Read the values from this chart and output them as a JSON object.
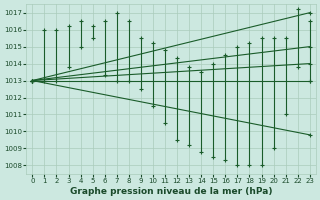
{
  "title": "Graphe pression niveau de la mer (hPa)",
  "bg_color": "#cce8e0",
  "grid_color": "#aaccbb",
  "line_color": "#1a5c2a",
  "xlim": [
    -0.5,
    23.5
  ],
  "ylim": [
    1007.5,
    1017.5
  ],
  "yticks": [
    1008,
    1009,
    1010,
    1011,
    1012,
    1013,
    1014,
    1015,
    1016,
    1017
  ],
  "xticks": [
    0,
    1,
    2,
    3,
    4,
    5,
    6,
    7,
    8,
    9,
    10,
    11,
    12,
    13,
    14,
    15,
    16,
    17,
    18,
    19,
    20,
    21,
    22,
    23
  ],
  "straight_lines": [
    {
      "x0": 0,
      "y0": 1013.0,
      "x1": 23,
      "y1": 1017.0
    },
    {
      "x0": 0,
      "y0": 1013.0,
      "x1": 23,
      "y1": 1015.0
    },
    {
      "x0": 0,
      "y0": 1013.0,
      "x1": 23,
      "y1": 1014.0
    },
    {
      "x0": 0,
      "y0": 1013.0,
      "x1": 23,
      "y1": 1013.0
    },
    {
      "x0": 0,
      "y0": 1013.0,
      "x1": 23,
      "y1": 1009.8
    }
  ],
  "vbar_high": [
    1013.0,
    1016.0,
    1016.0,
    1016.2,
    1016.5,
    1016.2,
    1016.5,
    1017.0,
    1016.5,
    1015.5,
    1015.2,
    1014.8,
    1014.3,
    1013.8,
    1013.5,
    1014.0,
    1014.5,
    1015.0,
    1015.2,
    1015.5,
    1015.5,
    1015.5,
    1017.2,
    1016.5
  ],
  "vbar_low": [
    1013.0,
    1013.0,
    1013.0,
    1013.8,
    1015.0,
    1015.5,
    1013.3,
    1013.0,
    1013.0,
    1012.5,
    1011.5,
    1010.5,
    1009.5,
    1009.2,
    1008.8,
    1008.5,
    1008.3,
    1008.0,
    1008.0,
    1008.0,
    1009.0,
    1011.0,
    1013.8,
    1013.0
  ],
  "marker_mid": [
    1013.0,
    1013.2,
    1014.5,
    1015.2,
    1015.8,
    1015.8,
    1015.2,
    1015.0,
    1014.8,
    1014.0,
    1013.5,
    1013.0,
    1012.5,
    1012.0,
    1011.5,
    1011.0,
    1010.8,
    1010.5,
    1010.2,
    1010.0,
    1009.8,
    1011.2,
    1013.3,
    1013.2
  ]
}
